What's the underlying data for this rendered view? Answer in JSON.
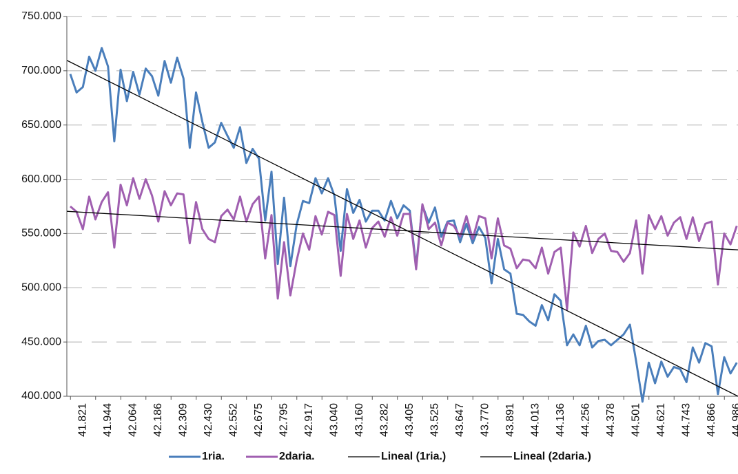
{
  "chart_data": {
    "type": "line",
    "categories": [
      null,
      null,
      "41.821",
      null,
      null,
      null,
      "41.944",
      null,
      null,
      null,
      "42.064",
      null,
      null,
      null,
      "42.186",
      null,
      null,
      null,
      "42.309",
      null,
      null,
      null,
      "42.430",
      null,
      null,
      null,
      "42.552",
      null,
      null,
      null,
      "42.675",
      null,
      null,
      null,
      "42.795",
      null,
      null,
      null,
      "42.917",
      null,
      null,
      null,
      "43.040",
      null,
      null,
      null,
      "43.160",
      null,
      null,
      null,
      "43.282",
      null,
      null,
      null,
      "43.405",
      null,
      null,
      null,
      "43.525",
      null,
      null,
      null,
      "43.647",
      null,
      null,
      null,
      "43.770",
      null,
      null,
      null,
      "43.891",
      null,
      null,
      null,
      "44.013",
      null,
      null,
      null,
      "44.136",
      null,
      null,
      null,
      "44.256",
      null,
      null,
      null,
      "44.378",
      null,
      null,
      null,
      "44.501",
      null,
      null,
      null,
      "44.621",
      null,
      null,
      null,
      "44.743",
      null,
      null,
      null,
      "44.866",
      null,
      null,
      null,
      "44.986"
    ],
    "series": [
      {
        "name": "1ria.",
        "color": "#4a7ebb",
        "trendline": {
          "name": "Lineal (1ria.)",
          "color": "#000000"
        },
        "values": [
          697000,
          680000,
          685000,
          713000,
          700000,
          721000,
          704000,
          635000,
          701000,
          672000,
          699000,
          678000,
          702000,
          695000,
          677000,
          709000,
          689000,
          712000,
          693000,
          629000,
          680000,
          653000,
          629000,
          634000,
          652000,
          640000,
          629000,
          648000,
          615000,
          628000,
          619000,
          562000,
          607000,
          522000,
          583000,
          520000,
          558000,
          580000,
          578000,
          601000,
          587000,
          601000,
          585000,
          534000,
          591000,
          569000,
          581000,
          561000,
          571000,
          571000,
          562000,
          580000,
          564000,
          576000,
          571000,
          520000,
          576000,
          560000,
          574000,
          547000,
          561000,
          562000,
          542000,
          559000,
          541000,
          556000,
          546000,
          504000,
          545000,
          517000,
          513000,
          476000,
          475000,
          469000,
          465000,
          484000,
          470000,
          494000,
          488000,
          447000,
          457000,
          447000,
          465000,
          445000,
          451000,
          452000,
          447000,
          452000,
          457000,
          466000,
          432000,
          395000,
          431000,
          412000,
          432000,
          418000,
          427000,
          425000,
          413000,
          445000,
          431000,
          449000,
          446000,
          402000,
          436000,
          421000,
          431000
        ]
      },
      {
        "name": "2daria.",
        "color": "#a05fb0",
        "trendline": {
          "name": "Lineal (2daria.)",
          "color": "#000000"
        },
        "values": [
          575000,
          570000,
          554000,
          584000,
          563000,
          579000,
          588000,
          537000,
          595000,
          576000,
          601000,
          582000,
          600000,
          585000,
          561000,
          589000,
          576000,
          587000,
          586000,
          541000,
          579000,
          554000,
          545000,
          542000,
          566000,
          572000,
          563000,
          584000,
          561000,
          577000,
          584000,
          527000,
          567000,
          490000,
          542000,
          493000,
          525000,
          550000,
          535000,
          566000,
          549000,
          570000,
          567000,
          511000,
          568000,
          545000,
          562000,
          537000,
          555000,
          561000,
          547000,
          565000,
          548000,
          568000,
          568000,
          517000,
          577000,
          554000,
          560000,
          539000,
          560000,
          557000,
          547000,
          566000,
          545000,
          566000,
          564000,
          527000,
          564000,
          539000,
          536000,
          518000,
          526000,
          525000,
          518000,
          537000,
          513000,
          533000,
          537000,
          480000,
          551000,
          538000,
          557000,
          532000,
          545000,
          550000,
          534000,
          533000,
          524000,
          532000,
          562000,
          513000,
          567000,
          554000,
          566000,
          548000,
          560000,
          565000,
          545000,
          565000,
          543000,
          559000,
          561000,
          503000,
          550000,
          540000,
          557000
        ]
      }
    ],
    "ylim": [
      400000,
      750000
    ],
    "yticks": [
      {
        "value": 400000,
        "label": "400.000"
      },
      {
        "value": 450000,
        "label": "450.000"
      },
      {
        "value": 500000,
        "label": "500.000"
      },
      {
        "value": 550000,
        "label": "550.000"
      },
      {
        "value": 600000,
        "label": "600.000"
      },
      {
        "value": 650000,
        "label": "650.000"
      },
      {
        "value": 700000,
        "label": "700.000"
      },
      {
        "value": 750000,
        "label": "750.000"
      }
    ],
    "grid": true,
    "legend": "bottom"
  }
}
